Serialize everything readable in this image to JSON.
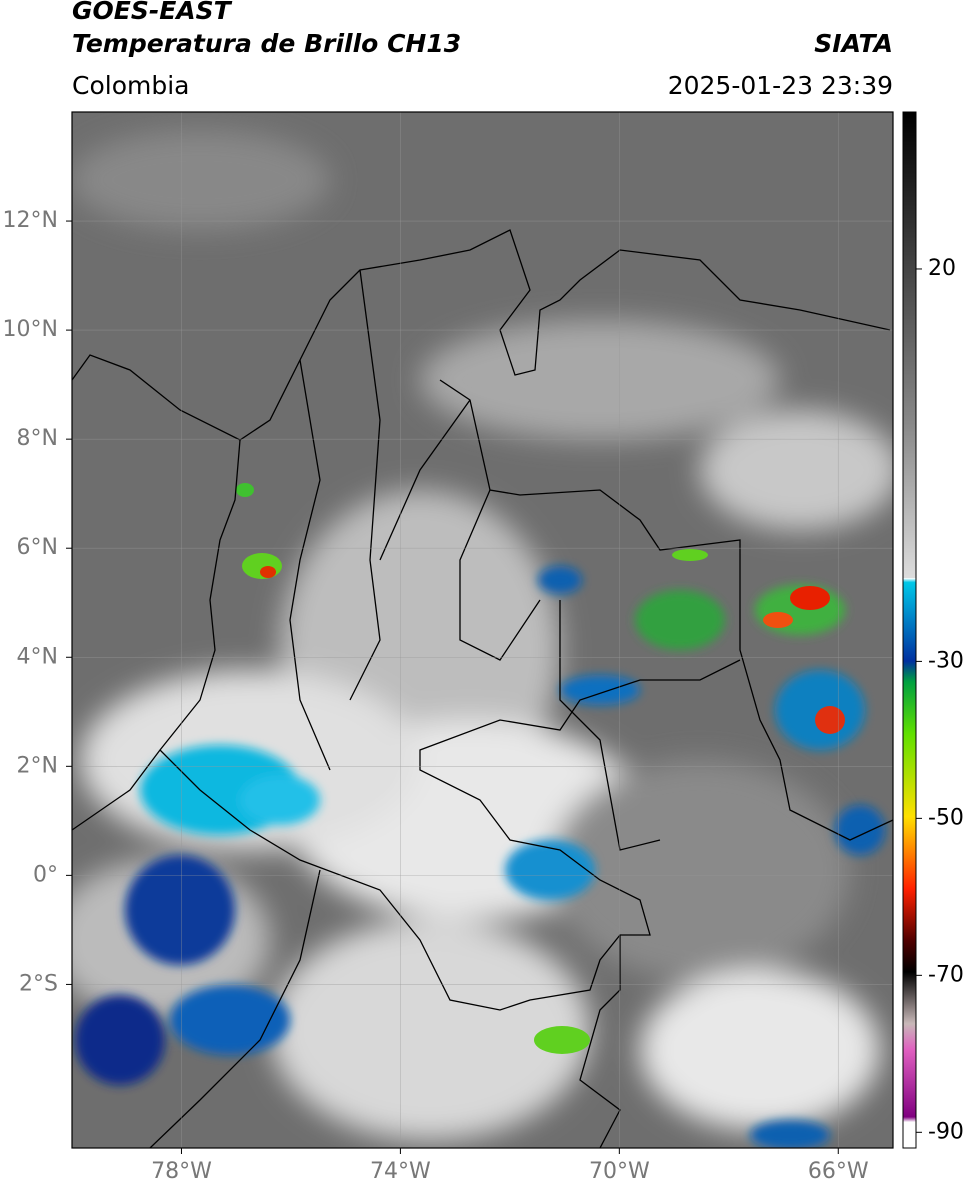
{
  "header": {
    "title": "GOES-EAST",
    "subtitle": "Temperatura de Brillo CH13",
    "source": "SIATA",
    "region": "Colombia",
    "timestamp": "2025-01-23 23:39"
  },
  "map": {
    "xlim": [
      -80,
      -65
    ],
    "ylim": [
      -5,
      14
    ],
    "xticks": [
      {
        "value": -78,
        "label": "78°W"
      },
      {
        "value": -74,
        "label": "74°W"
      },
      {
        "value": -70,
        "label": "70°W"
      },
      {
        "value": -66,
        "label": "66°W"
      }
    ],
    "yticks": [
      {
        "value": 12,
        "label": "12°N"
      },
      {
        "value": 10,
        "label": "10°N"
      },
      {
        "value": 8,
        "label": "8°N"
      },
      {
        "value": 6,
        "label": "6°N"
      },
      {
        "value": 4,
        "label": "4°N"
      },
      {
        "value": 2,
        "label": "2°N"
      },
      {
        "value": 0,
        "label": "0°"
      },
      {
        "value": -2,
        "label": "2°S"
      }
    ],
    "grid": true
  },
  "colorbar": {
    "lim": [
      -92,
      40
    ],
    "ticks": [
      20,
      -30,
      -50,
      -70,
      -90
    ]
  }
}
